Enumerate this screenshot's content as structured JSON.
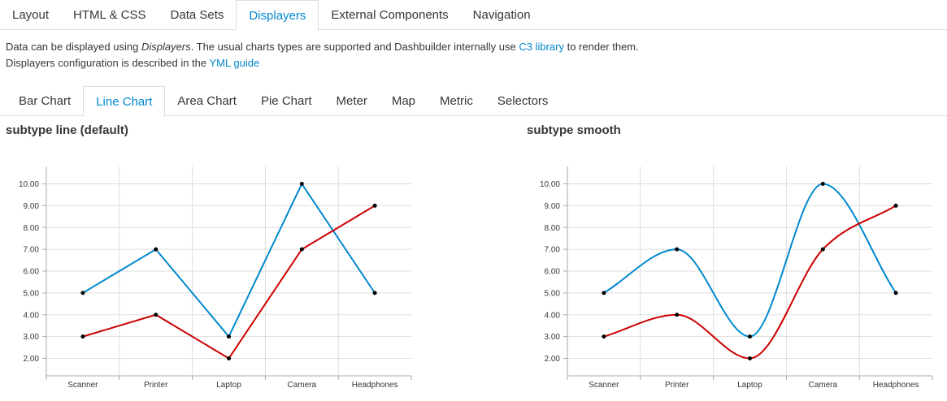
{
  "top_tabs": [
    {
      "label": "Layout",
      "active": false
    },
    {
      "label": "HTML & CSS",
      "active": false
    },
    {
      "label": "Data Sets",
      "active": false
    },
    {
      "label": "Displayers",
      "active": true
    },
    {
      "label": "External Components",
      "active": false
    },
    {
      "label": "Navigation",
      "active": false
    }
  ],
  "intro": {
    "line1_part1": "Data can be displayed using ",
    "line1_em": "Displayers",
    "line1_part2": ". The usual charts types are supported and Dashbuilder internally use ",
    "line1_link": "C3 library",
    "line1_part3": " to render them.",
    "line2_part1": "Displayers configuration is described in the ",
    "line2_link": "YML guide"
  },
  "chart_tabs": [
    {
      "label": "Bar Chart",
      "active": false
    },
    {
      "label": "Line Chart",
      "active": true
    },
    {
      "label": "Area Chart",
      "active": false
    },
    {
      "label": "Pie Chart",
      "active": false
    },
    {
      "label": "Meter",
      "active": false
    },
    {
      "label": "Map",
      "active": false
    },
    {
      "label": "Metric",
      "active": false
    },
    {
      "label": "Selectors",
      "active": false
    }
  ],
  "colors": {
    "series1": "#0088ce",
    "series2": "#cc0000",
    "grid": "#dddddd",
    "axis": "#aaaaaa"
  },
  "chart_data": [
    {
      "type": "line",
      "subtype": "line",
      "title": "subtype line (default)",
      "categories": [
        "Scanner",
        "Printer",
        "Laptop",
        "Camera",
        "Headphones"
      ],
      "series": [
        {
          "values": [
            5,
            7,
            3,
            10,
            5
          ]
        },
        {
          "values": [
            3,
            4,
            2,
            7,
            9
          ]
        }
      ],
      "yticks": [
        "2.00",
        "3.00",
        "4.00",
        "5.00",
        "6.00",
        "7.00",
        "8.00",
        "9.00",
        "10.00"
      ],
      "grid": true
    },
    {
      "type": "line",
      "subtype": "smooth",
      "title": "subtype smooth",
      "categories": [
        "Scanner",
        "Printer",
        "Laptop",
        "Camera",
        "Headphones"
      ],
      "series": [
        {
          "values": [
            5,
            7,
            3,
            10,
            5
          ]
        },
        {
          "values": [
            3,
            4,
            2,
            7,
            9
          ]
        }
      ],
      "yticks": [
        "2.00",
        "3.00",
        "4.00",
        "5.00",
        "6.00",
        "7.00",
        "8.00",
        "9.00",
        "10.00"
      ],
      "grid": true
    }
  ]
}
